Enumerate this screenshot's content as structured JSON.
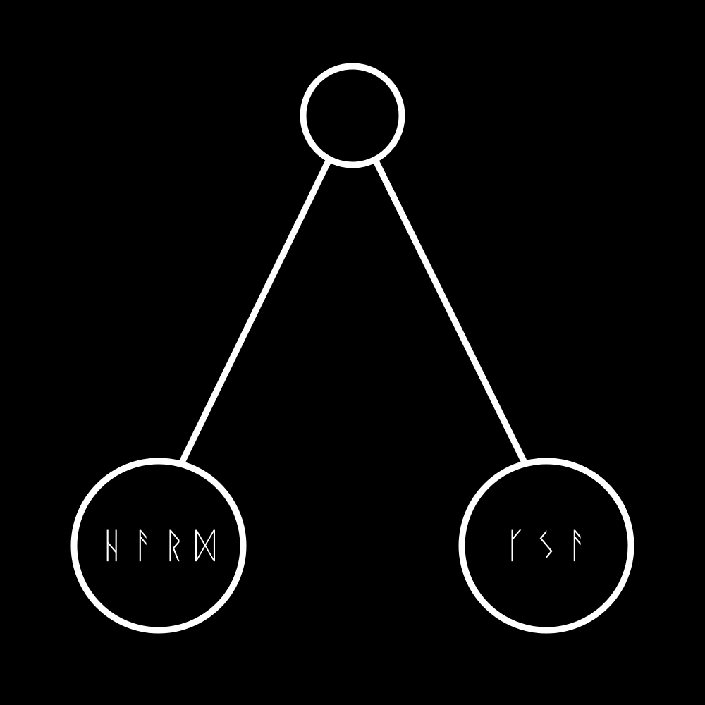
{
  "tree": {
    "root": {
      "label": ""
    },
    "left_child": {
      "label": "ᚺᚨᚱᛞ"
    },
    "right_child": {
      "label": "ᚴᛊᚨ"
    }
  },
  "colors": {
    "background": "#000000",
    "stroke": "#ffffff"
  }
}
